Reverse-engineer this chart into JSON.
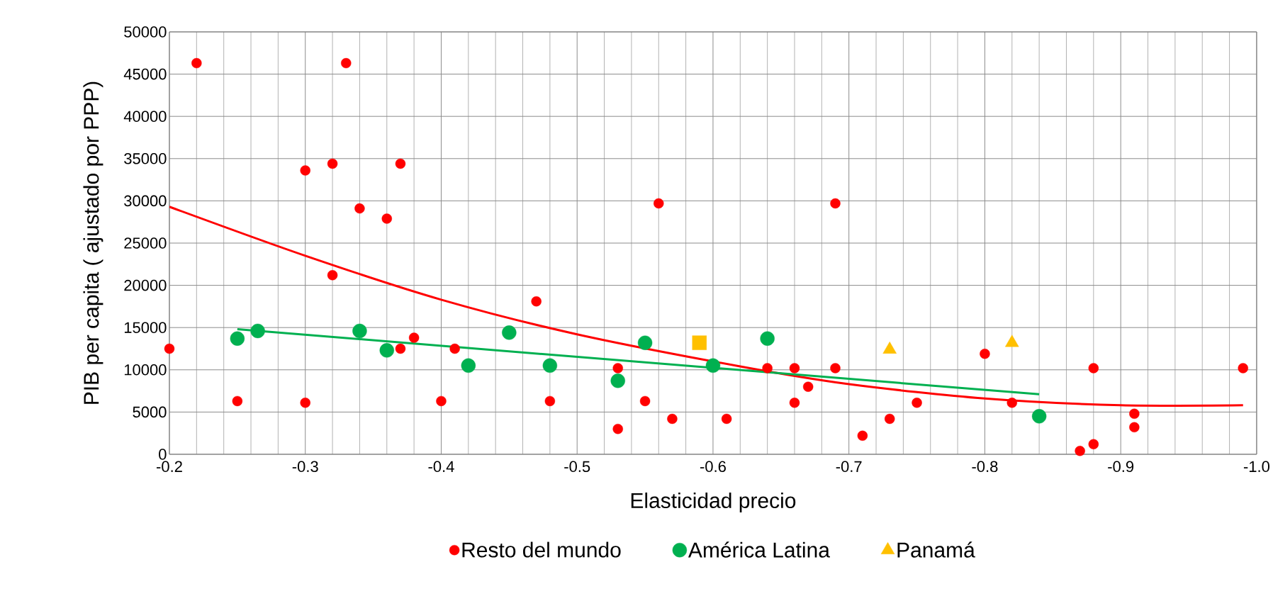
{
  "chart_data": {
    "type": "scatter",
    "xlabel": "Elasticidad precio",
    "ylabel": "PIB per capita  ( ajustado por PPP)",
    "xlim": [
      -0.2,
      -1.0
    ],
    "ylim": [
      0,
      50000
    ],
    "xticks": [
      -0.2,
      -0.3,
      -0.4,
      -0.5,
      -0.6,
      -0.7,
      -0.8,
      -0.9,
      {
        "value": -1.0,
        "label": "-1.0"
      }
    ],
    "yticks": [
      0,
      5000,
      10000,
      15000,
      20000,
      25000,
      30000,
      35000,
      40000,
      45000,
      50000
    ],
    "grid": true,
    "legend": "bottom",
    "marker": "circle",
    "series": [
      {
        "name": "Resto del mundo",
        "color": "#ff0000",
        "x": [
          -0.2,
          -0.22,
          -0.25,
          -0.3,
          -0.3,
          -0.32,
          -0.32,
          -0.33,
          -0.34,
          -0.36,
          -0.37,
          -0.37,
          -0.38,
          -0.4,
          -0.41,
          -0.47,
          -0.48,
          -0.53,
          -0.53,
          -0.55,
          -0.56,
          -0.57,
          -0.61,
          -0.64,
          -0.66,
          -0.66,
          -0.67,
          -0.69,
          -0.69,
          -0.71,
          -0.73,
          -0.75,
          -0.8,
          -0.82,
          -0.87,
          -0.88,
          -0.88,
          -0.91,
          -0.91,
          -0.99
        ],
        "values": [
          12500,
          46300,
          6300,
          6100,
          33600,
          34400,
          21200,
          46300,
          29100,
          27900,
          34400,
          12500,
          13800,
          6300,
          12500,
          18100,
          6300,
          10200,
          3000,
          6300,
          29700,
          4200,
          4200,
          10200,
          10200,
          6100,
          8000,
          10200,
          29700,
          2200,
          4200,
          6100,
          11900,
          6100,
          400,
          1200,
          10200,
          4800,
          3200,
          10200
        ]
      },
      {
        "name": "América Latina",
        "color": "#00b050",
        "x": [
          -0.25,
          -0.265,
          -0.34,
          -0.36,
          -0.42,
          -0.45,
          -0.48,
          -0.53,
          -0.55,
          -0.6,
          -0.64,
          -0.84
        ],
        "values": [
          13700,
          14600,
          14600,
          12300,
          10500,
          14400,
          10500,
          8700,
          13200,
          10500,
          13700,
          4500
        ]
      },
      {
        "name": "Panamá",
        "color": "#ffc000",
        "marker": "triangle",
        "x": [
          -0.73,
          -0.82
        ],
        "values": [
          12400,
          13200
        ]
      },
      {
        "color": "#ffc000",
        "marker": "square",
        "x": [
          -0.59
        ],
        "values": [
          13200
        ]
      },
      {
        "type": "line",
        "color": "#ff0000",
        "marker": "none",
        "x": [
          -0.2,
          -0.3,
          -0.4,
          -0.5,
          -0.62,
          -0.7,
          -0.8,
          -0.9,
          -0.99
        ],
        "values": [
          29300,
          23500,
          18300,
          14200,
          10400,
          8300,
          6600,
          5800,
          5800
        ]
      },
      {
        "type": "line",
        "color": "#00b050",
        "marker": "none",
        "x": [
          -0.25,
          -0.84
        ],
        "values": [
          14800,
          7100
        ]
      }
    ]
  }
}
